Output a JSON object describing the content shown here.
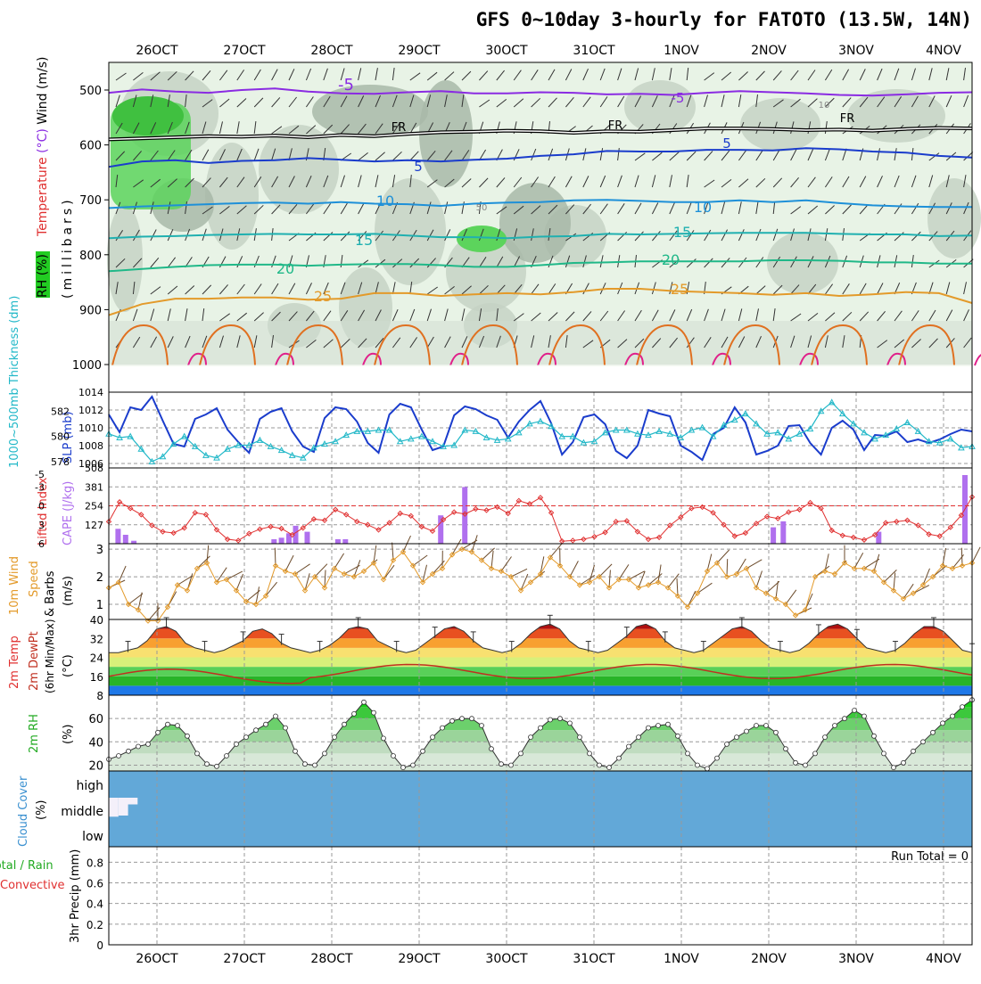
{
  "title": "GFS 0~10day 3-hourly for FATOTO (13.5W, 14N)",
  "colors": {
    "lifted": "#e03030",
    "cape": "#b070ee",
    "slp": "#1a3ccc",
    "thick": "#22b8c8",
    "wind": "#e39a2a",
    "rh": "#22aa22",
    "cloud": "#62a8d8",
    "temp_violet": "#8a2be2",
    "dew": "#c03020",
    "rain_green": "#22aa22",
    "conv_red": "#e03030"
  },
  "chart_data": [
    {
      "type": "heatmap",
      "panel": "upper-air",
      "title": "",
      "y_label": "(millibars)",
      "y_ticks": [
        "500",
        "600",
        "700",
        "800",
        "900",
        "1000"
      ],
      "y_range": [
        450,
        1000
      ],
      "label_rh": "RH (%)",
      "label_temp_prefix": "Temperature",
      "label_temp_unit": "(°C)",
      "label_wind": "Wind (m/s)",
      "contours": [
        {
          "label": "-5",
          "color": "#8a2be2",
          "levels": [
            505,
            499,
            503,
            505,
            500,
            497,
            503,
            506,
            507,
            504,
            502,
            506,
            506,
            504,
            505,
            508,
            507,
            509,
            505,
            502,
            504,
            506,
            509,
            510,
            508,
            505,
            504
          ]
        },
        {
          "label": "FR",
          "color": "#000000",
          "levels": [
            590,
            588,
            586,
            584,
            585,
            583,
            586,
            582,
            584,
            580,
            577,
            576,
            574,
            575,
            578,
            575,
            576,
            573,
            570,
            570,
            571,
            573,
            572,
            574,
            571,
            569,
            570
          ]
        },
        {
          "label": "5",
          "color": "#1a3ccc",
          "levels": [
            640,
            630,
            628,
            633,
            629,
            628,
            624,
            627,
            630,
            628,
            630,
            627,
            625,
            620,
            617,
            611,
            612,
            612,
            609,
            609,
            610,
            606,
            608,
            612,
            614,
            620,
            623
          ]
        },
        {
          "label": "10",
          "color": "#1e90d8",
          "levels": [
            715,
            712,
            710,
            708,
            706,
            705,
            707,
            704,
            707,
            708,
            711,
            707,
            705,
            704,
            701,
            700,
            702,
            704,
            704,
            701,
            704,
            701,
            706,
            710,
            712,
            713,
            713
          ]
        },
        {
          "label": "15",
          "color": "#20b0b0",
          "levels": [
            770,
            767,
            766,
            764,
            763,
            762,
            763,
            763,
            762,
            765,
            768,
            768,
            770,
            767,
            766,
            762,
            763,
            762,
            761,
            760,
            760,
            760,
            762,
            763,
            763,
            766,
            765
          ]
        },
        {
          "label": "20",
          "color": "#20b888",
          "levels": [
            830,
            826,
            822,
            819,
            818,
            818,
            820,
            818,
            817,
            817,
            819,
            822,
            822,
            819,
            815,
            814,
            812,
            812,
            812,
            812,
            810,
            810,
            811,
            814,
            814,
            816,
            816
          ]
        },
        {
          "label": "25",
          "color": "#e39a2a",
          "levels": [
            910,
            890,
            880,
            880,
            878,
            878,
            882,
            880,
            870,
            870,
            875,
            872,
            870,
            872,
            868,
            862,
            862,
            866,
            868,
            870,
            873,
            870,
            875,
            872,
            868,
            870,
            888
          ]
        }
      ],
      "contour_labels": [
        "-5",
        "FR",
        "5",
        "10",
        "15",
        "20",
        "25",
        "50",
        "10"
      ]
    },
    {
      "type": "line",
      "panel": "slp-thickness",
      "label_thick": "1000~500mb Thickness (dm)",
      "label_slp": "SLP (mb)",
      "left_ticks": [
        "578",
        "580",
        "582"
      ],
      "left_range": [
        577.5,
        583.5
      ],
      "right_ticks": [
        "1006",
        "1008",
        "1010",
        "1012",
        "1014"
      ],
      "right_range": [
        1005.5,
        1014
      ],
      "series": [
        {
          "axis": "right",
          "values": [
            1011.5,
            1009.5,
            1012.3,
            1012.0,
            1013.5,
            1010.8,
            1008.2,
            1007.9,
            1011.0,
            1011.5,
            1012.2,
            1009.8,
            1008.4,
            1007.2,
            1011.0,
            1011.8,
            1012.2,
            1009.6,
            1007.9,
            1007.3,
            1011.1,
            1012.3,
            1012.1,
            1010.7,
            1008.3,
            1007.2,
            1011.5,
            1012.7,
            1012.3,
            1009.8,
            1007.5,
            1007.9,
            1011.4,
            1012.4,
            1012.1,
            1011.4,
            1010.9,
            1008.9,
            1010.7,
            1012.0,
            1013.0,
            1010.5,
            1007.0,
            1008.4,
            1011.2,
            1011.5,
            1010.4,
            1007.4,
            1006.6,
            1008.0,
            1012.0,
            1011.6,
            1011.3,
            1008.0,
            1007.3,
            1006.4,
            1009.3,
            1010.0,
            1012.3,
            1010.6,
            1007.0,
            1007.4,
            1008.0,
            1010.2,
            1010.3,
            1008.3,
            1007.0,
            1010.0,
            1010.8,
            1009.8,
            1007.5,
            1009.2,
            1009.1,
            1009.6,
            1008.4,
            1008.7,
            1008.3,
            1008.7,
            1009.3,
            1009.8,
            1009.6
          ]
        },
        {
          "axis": "left",
          "values": [
            580.2,
            579.9,
            580.0,
            579.0,
            578.0,
            578.4,
            579.4,
            580.0,
            579.2,
            578.5,
            578.3,
            579.0,
            579.3,
            579.3,
            579.7,
            579.2,
            578.9,
            578.5,
            578.3,
            579.1,
            579.4,
            579.6,
            580.1,
            580.4,
            580.4,
            580.5,
            580.5,
            579.6,
            579.8,
            580.0,
            579.6,
            579.2,
            579.3,
            580.5,
            580.4,
            579.9,
            579.7,
            579.8,
            580.3,
            581.0,
            581.2,
            580.8,
            580.0,
            580.0,
            579.5,
            579.6,
            580.3,
            580.5,
            580.5,
            580.2,
            580.1,
            580.4,
            580.2,
            579.9,
            580.5,
            580.7,
            580.0,
            580.9,
            581.3,
            581.8,
            581.0,
            580.2,
            580.3,
            579.8,
            580.2,
            580.6,
            582.0,
            582.7,
            581.8,
            581.0,
            580.3,
            579.8,
            580.1,
            580.6,
            581.1,
            580.4,
            579.6,
            579.5,
            579.8,
            579.1,
            579.2
          ]
        }
      ]
    },
    {
      "type": "bar",
      "panel": "cape-lifted",
      "label_lifted": "Lifted Index",
      "label_cape": "CAPE (J/kg)",
      "left_ticks": [
        "-5",
        "-3",
        "0",
        "3",
        "6"
      ],
      "left_range": [
        -6,
        6
      ],
      "right_ticks": [
        "127",
        "254",
        "381",
        "508"
      ],
      "right_range": [
        0,
        508
      ],
      "cape_bars": [
        {
          "x": 0.8,
          "v": 100
        },
        {
          "x": 1.7,
          "v": 60
        },
        {
          "x": 2.7,
          "v": 20
        },
        {
          "x": 19.6,
          "v": 30
        },
        {
          "x": 20.5,
          "v": 40
        },
        {
          "x": 21.4,
          "v": 70
        },
        {
          "x": 22.2,
          "v": 120
        },
        {
          "x": 23.6,
          "v": 80
        },
        {
          "x": 27.3,
          "v": 30
        },
        {
          "x": 28.2,
          "v": 30
        },
        {
          "x": 39.7,
          "v": 190
        },
        {
          "x": 42.6,
          "v": 380
        },
        {
          "x": 79.8,
          "v": 110
        },
        {
          "x": 81.0,
          "v": 150
        },
        {
          "x": 92.5,
          "v": 80
        },
        {
          "x": 102.9,
          "v": 460
        }
      ],
      "lifted_values": [
        2.5,
        -0.6,
        0.4,
        1.4,
        3.1,
        4.1,
        4.3,
        3.5,
        1.1,
        1.4,
        3.8,
        5.3,
        5.5,
        4.4,
        3.7,
        3.3,
        3.6,
        4.6,
        3.5,
        2.1,
        2.3,
        0.6,
        1.4,
        2.5,
        3.0,
        3.8,
        2.7,
        1.2,
        1.6,
        3.3,
        4.0,
        2.2,
        1.0,
        1.3,
        0.5,
        0.7,
        0.2,
        1.2,
        -0.8,
        -0.3,
        -1.3,
        1.1,
        5.6,
        5.5,
        5.3,
        4.9,
        4.2,
        2.5,
        2.4,
        4.1,
        5.3,
        5.0,
        3.1,
        1.8,
        0.4,
        0.2,
        1.1,
        3.0,
        4.8,
        4.3,
        2.8,
        1.7,
        2.0,
        1.0,
        0.6,
        -0.5,
        0.4,
        3.9,
        4.7,
        5.0,
        5.4,
        4.6,
        2.7,
        2.5,
        2.3,
        3.1,
        4.5,
        4.8,
        3.4,
        1.5,
        -1.4
      ]
    },
    {
      "type": "line",
      "panel": "wind10m",
      "label_wind_a": "10m Wind",
      "label_wind_b": "Speed",
      "label_wind_c": "& Barbs",
      "y_label": "(m/s)",
      "y_ticks": [
        "1",
        "2",
        "3"
      ],
      "y_range": [
        0.45,
        3.2
      ],
      "values": [
        1.6,
        1.8,
        1.0,
        0.8,
        0.4,
        0.4,
        0.9,
        1.7,
        1.5,
        2.3,
        2.5,
        1.8,
        1.9,
        1.5,
        1.1,
        1.0,
        1.3,
        2.4,
        2.2,
        2.1,
        1.5,
        2.0,
        1.6,
        2.3,
        2.1,
        2.0,
        2.2,
        2.5,
        1.9,
        2.6,
        2.9,
        2.4,
        1.8,
        2.1,
        2.3,
        2.8,
        3.0,
        2.9,
        2.6,
        2.3,
        2.2,
        2.0,
        1.5,
        1.8,
        2.1,
        2.7,
        2.4,
        2.0,
        1.7,
        1.8,
        2.0,
        1.6,
        1.9,
        1.9,
        1.6,
        1.7,
        1.8,
        1.6,
        1.3,
        0.9,
        1.4,
        2.2,
        2.5,
        2.0,
        2.1,
        2.3,
        1.6,
        1.4,
        1.2,
        1.0,
        0.6,
        0.8,
        2.0,
        2.2,
        2.1,
        2.5,
        2.3,
        2.3,
        2.2,
        1.8,
        1.5,
        1.2,
        1.4,
        1.7,
        2.0,
        2.4,
        2.3,
        2.4,
        2.5
      ]
    },
    {
      "type": "area",
      "panel": "temp2m",
      "label_a": "2m Temp",
      "label_b": "2m DewPt",
      "label_c": "(6hr Min/Max)",
      "y_label": "(°C)",
      "y_ticks": [
        "8",
        "16",
        "24",
        "32",
        "40"
      ],
      "y_range": [
        8,
        40
      ],
      "temp": [
        26,
        26,
        27,
        28,
        31,
        36,
        37,
        35,
        30,
        28,
        27,
        26,
        27,
        29,
        31,
        35,
        36,
        34,
        30,
        28,
        27,
        26,
        27,
        29,
        32,
        36,
        37,
        36,
        31,
        29,
        27,
        26,
        27,
        30,
        33,
        36,
        37,
        35,
        31,
        28,
        27,
        26,
        27,
        30,
        34,
        37,
        38,
        36,
        31,
        28,
        27,
        26,
        27,
        30,
        33,
        37,
        38,
        36,
        31,
        28,
        27,
        26,
        27,
        30,
        33,
        36,
        37,
        35,
        31,
        28,
        27,
        26,
        27,
        30,
        34,
        37,
        38,
        36,
        32,
        28,
        27,
        26,
        27,
        30,
        34,
        37,
        37,
        35,
        31,
        27,
        26
      ]
    },
    {
      "type": "area",
      "panel": "rh2m",
      "label": "2m RH",
      "y_label": "(%)",
      "y_ticks": [
        "20",
        "40",
        "60"
      ],
      "y_range": [
        15,
        80
      ],
      "values": [
        25,
        28,
        32,
        36,
        38,
        48,
        55,
        54,
        45,
        30,
        21,
        19,
        28,
        38,
        44,
        50,
        55,
        62,
        52,
        32,
        21,
        20,
        30,
        44,
        55,
        64,
        74,
        65,
        43,
        28,
        18,
        20,
        32,
        44,
        52,
        58,
        60,
        60,
        54,
        34,
        21,
        20,
        30,
        44,
        52,
        59,
        60,
        56,
        44,
        30,
        20,
        18,
        26,
        36,
        44,
        52,
        54,
        55,
        45,
        30,
        20,
        17,
        26,
        38,
        44,
        49,
        54,
        54,
        48,
        34,
        22,
        20,
        30,
        44,
        54,
        60,
        67,
        62,
        45,
        30,
        18,
        22,
        32,
        40,
        48,
        56,
        62,
        70,
        76
      ]
    },
    {
      "type": "area",
      "panel": "cloud",
      "label_a": "Cloud Cover",
      "label_b": "(%)",
      "levels": [
        "high",
        "middle",
        "low"
      ],
      "high_cover": [
        60,
        45,
        70,
        50,
        75,
        60,
        45,
        55,
        70,
        80,
        75,
        82,
        70,
        78,
        65,
        60,
        55,
        75,
        82,
        85,
        80,
        72,
        75,
        68,
        80,
        82,
        85,
        78,
        70,
        75,
        82,
        80,
        85,
        82,
        78,
        80,
        82,
        85,
        83,
        80,
        82,
        85,
        86,
        88,
        88,
        87,
        86,
        85,
        86,
        87,
        88,
        86,
        85,
        86,
        87,
        88,
        88,
        87,
        86,
        85,
        88,
        85,
        80,
        75,
        72,
        70,
        72,
        74,
        78,
        80,
        82,
        84,
        86,
        88,
        88,
        88,
        88,
        88,
        88,
        88,
        88,
        88,
        88,
        88,
        88,
        88,
        88,
        88,
        88,
        88
      ],
      "middle_cover": [
        85,
        80,
        30,
        25,
        22,
        20,
        20,
        22,
        24,
        25,
        25,
        26,
        26,
        27,
        28,
        28,
        28,
        28,
        28,
        28,
        28,
        28,
        28,
        28,
        28,
        28,
        28,
        28,
        28,
        28,
        28,
        28,
        28,
        28,
        28,
        28,
        28,
        28,
        28,
        28,
        28,
        28,
        28,
        28,
        28,
        28,
        28,
        28,
        28,
        28,
        28,
        28,
        28,
        28,
        28,
        28,
        28,
        28,
        28,
        28,
        28,
        28,
        28,
        28,
        28,
        28,
        28,
        28,
        28,
        28,
        28,
        28,
        28,
        28,
        28,
        28,
        28,
        28,
        28,
        28,
        28,
        28,
        28,
        28,
        28,
        28,
        28,
        28,
        28
      ]
    },
    {
      "type": "bar",
      "panel": "precip",
      "label_a": "Total / Rain",
      "label_b": "Convective",
      "y_label": "3hr Precip (mm)",
      "y_ticks": [
        "0",
        "0.2",
        "0.4",
        "0.6",
        "0.8"
      ],
      "y_range": [
        0,
        0.95
      ],
      "run_total": "Run Total = 0",
      "values": []
    }
  ],
  "x_axis": {
    "day_labels": [
      "26OCT",
      "27OCT",
      "28OCT",
      "29OCT",
      "30OCT",
      "31OCT",
      "1NOV",
      "2NOV",
      "3NOV",
      "4NOV"
    ]
  }
}
